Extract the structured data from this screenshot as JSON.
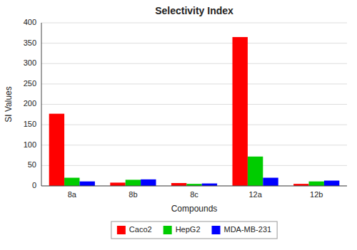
{
  "chart_data": {
    "type": "bar",
    "title": "Selectivity Index",
    "xlabel": "Compounds",
    "ylabel": "SI Values",
    "categories": [
      "8a",
      "8b",
      "8c",
      "12a",
      "12b"
    ],
    "series": [
      {
        "name": "Caco2",
        "color": "#FF0000",
        "values": [
          177,
          8,
          7,
          365,
          5
        ]
      },
      {
        "name": "HepG2",
        "color": "#00CC00",
        "values": [
          20,
          15,
          5,
          72,
          11
        ]
      },
      {
        "name": "MDA-MB-231",
        "color": "#0000FF",
        "values": [
          11,
          16,
          6,
          20,
          13
        ]
      }
    ],
    "ylim": [
      0,
      400
    ],
    "yticks": [
      0,
      50,
      100,
      150,
      200,
      250,
      300,
      350,
      400
    ],
    "grid": true,
    "legend": "bottom"
  }
}
